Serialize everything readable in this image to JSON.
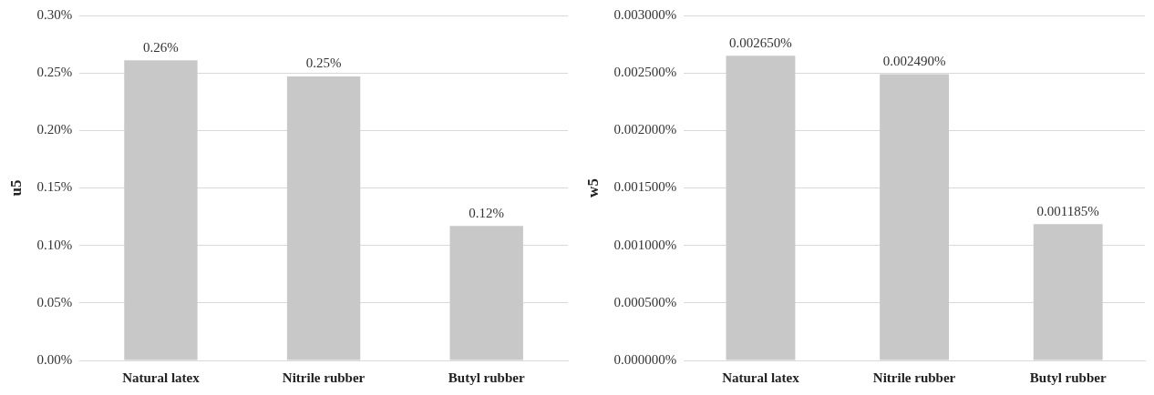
{
  "chart_data": [
    {
      "type": "bar",
      "ylabel": "u5",
      "categories": [
        "Natural latex",
        "Nitrile rubber",
        "Butyl rubber"
      ],
      "values": [
        0.261,
        0.247,
        0.117
      ],
      "value_labels": [
        "0.26%",
        "0.25%",
        "0.12%"
      ],
      "color": "#c8c8c8",
      "ylim": [
        0,
        0.3
      ],
      "yticks": [
        {
          "value": 0,
          "label": "0.00%"
        },
        {
          "value": 0.05,
          "label": "0.05%"
        },
        {
          "value": 0.1,
          "label": "0.10%"
        },
        {
          "value": 0.15,
          "label": "0.15%"
        },
        {
          "value": 0.2,
          "label": "0.20%"
        },
        {
          "value": 0.25,
          "label": "0.25%"
        },
        {
          "value": 0.3,
          "label": "0.30%"
        }
      ],
      "grid": "y",
      "legend": false
    },
    {
      "type": "bar",
      "ylabel": "w5",
      "categories": [
        "Natural latex",
        "Nitrile rubber",
        "Butyl rubber"
      ],
      "values": [
        0.00265,
        0.00249,
        0.001185
      ],
      "value_labels": [
        "0.002650%",
        "0.002490%",
        "0.001185%"
      ],
      "color": "#c8c8c8",
      "ylim": [
        0,
        0.003
      ],
      "yticks": [
        {
          "value": 0,
          "label": "0.000000%"
        },
        {
          "value": 0.0005,
          "label": "0.000500%"
        },
        {
          "value": 0.001,
          "label": "0.001000%"
        },
        {
          "value": 0.0015,
          "label": "0.001500%"
        },
        {
          "value": 0.002,
          "label": "0.002000%"
        },
        {
          "value": 0.0025,
          "label": "0.002500%"
        },
        {
          "value": 0.003,
          "label": "0.003000%"
        }
      ],
      "grid": "y",
      "legend": false
    }
  ]
}
